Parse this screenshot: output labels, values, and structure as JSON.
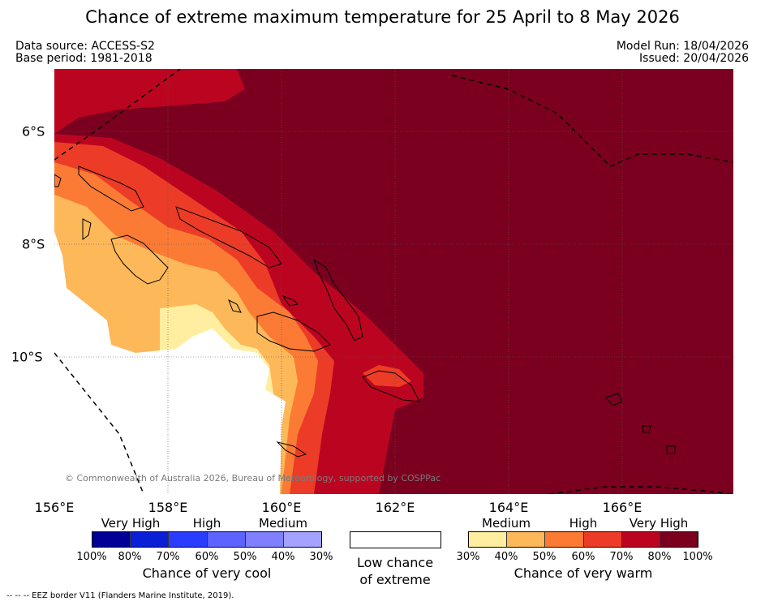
{
  "title": "Chance of extreme maximum temperature for 25 April to 8 May 2026",
  "header": {
    "data_source": "Data source: ACCESS-S2",
    "base_period": "Base period: 1981-2018",
    "model_run": "Model Run: 18/04/2026",
    "issued": "Issued: 20/04/2026"
  },
  "map": {
    "lon_labels": [
      "156°E",
      "158°E",
      "160°E",
      "162°E",
      "164°E",
      "166°E"
    ],
    "lat_labels": [
      "6°S",
      "8°S",
      "10°S"
    ],
    "copyright": "© Commonwealth of Australia 2026, Bureau of Meteorology, supported by COSPPac"
  },
  "legend_cool": {
    "categories": [
      "Very High",
      "High",
      "Medium"
    ],
    "ticks": [
      "100%",
      "80%",
      "70%",
      "60%",
      "50%",
      "40%",
      "30%"
    ],
    "colors": [
      "#000096",
      "#0a1fd6",
      "#2a3cff",
      "#5c63ff",
      "#8080ff",
      "#a3a3ff"
    ],
    "caption": "Chance of very cool"
  },
  "legend_low": {
    "caption_line1": "Low chance",
    "caption_line2": "of extreme"
  },
  "legend_warm": {
    "categories": [
      "Medium",
      "High",
      "Very High"
    ],
    "ticks": [
      "30%",
      "40%",
      "50%",
      "60%",
      "70%",
      "80%",
      "100%"
    ],
    "colors": [
      "#ffeea0",
      "#fdb85a",
      "#fb7b35",
      "#ec3c27",
      "#bb0520",
      "#7b0020"
    ],
    "caption": "Chance of very warm"
  },
  "footnote": "--  --  -- EEZ border V11 (Flanders Marine Institute, 2019)."
}
